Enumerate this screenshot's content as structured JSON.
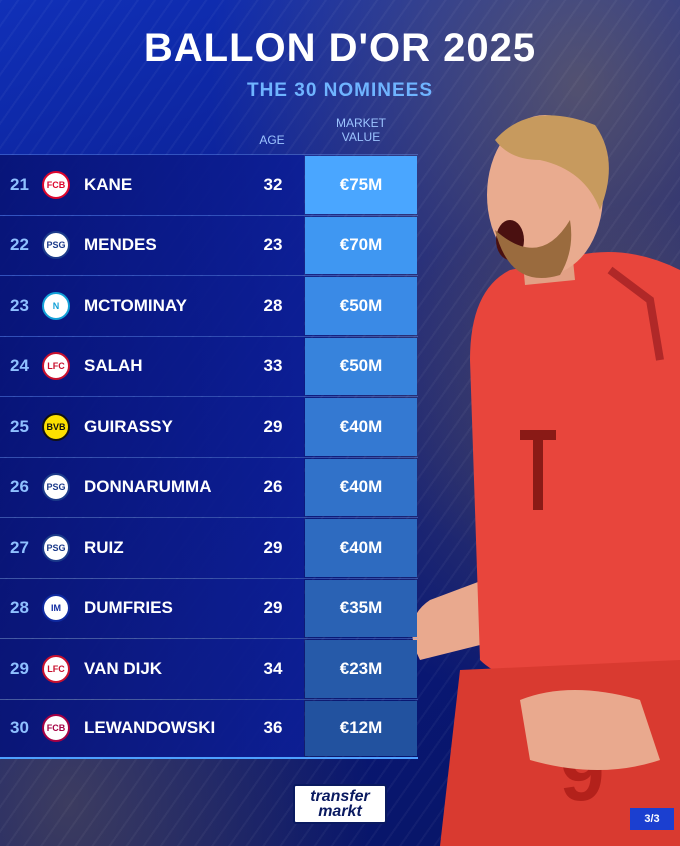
{
  "title": "BALLON D'OR 2025",
  "subtitle": "THE 30 NOMINEES",
  "columns": {
    "age": "AGE",
    "market_value_l1": "MARKET",
    "market_value_l2": "VALUE"
  },
  "rows": [
    {
      "rank": "21",
      "name": "KANE",
      "age": "32",
      "value": "€75M",
      "club_icon": "bayern-crest-icon",
      "club_color": "#dc052d",
      "crest_text": "FCB"
    },
    {
      "rank": "22",
      "name": "MENDES",
      "age": "23",
      "value": "€70M",
      "club_icon": "psg-crest-icon",
      "club_color": "#1b3a8a",
      "crest_text": "PSG"
    },
    {
      "rank": "23",
      "name": "MCTOMINAY",
      "age": "28",
      "value": "€50M",
      "club_icon": "napoli-crest-icon",
      "club_color": "#12a0d7",
      "crest_text": "N"
    },
    {
      "rank": "24",
      "name": "SALAH",
      "age": "33",
      "value": "€50M",
      "club_icon": "liverpool-crest-icon",
      "club_color": "#c8102e",
      "crest_text": "LFC"
    },
    {
      "rank": "25",
      "name": "GUIRASSY",
      "age": "29",
      "value": "€40M",
      "club_icon": "dortmund-crest-icon",
      "club_color": "#fde100",
      "crest_text": "BVB"
    },
    {
      "rank": "26",
      "name": "DONNARUMMA",
      "age": "26",
      "value": "€40M",
      "club_icon": "psg-crest-icon",
      "club_color": "#1b3a8a",
      "crest_text": "PSG"
    },
    {
      "rank": "27",
      "name": "RUIZ",
      "age": "29",
      "value": "€40M",
      "club_icon": "psg-crest-icon",
      "club_color": "#1b3a8a",
      "crest_text": "PSG"
    },
    {
      "rank": "28",
      "name": "DUMFRIES",
      "age": "29",
      "value": "€35M",
      "club_icon": "inter-crest-icon",
      "club_color": "#0f2aa0",
      "crest_text": "IM"
    },
    {
      "rank": "29",
      "name": "VAN DIJK",
      "age": "34",
      "value": "€23M",
      "club_icon": "liverpool-crest-icon",
      "club_color": "#c8102e",
      "crest_text": "LFC"
    },
    {
      "rank": "30",
      "name": "LEWANDOWSKI",
      "age": "36",
      "value": "€12M",
      "club_icon": "barcelona-crest-icon",
      "club_color": "#a50044",
      "crest_text": "FCB"
    }
  ],
  "value_colors": [
    "#4aa6ff",
    "#3f97f2",
    "#3a8ae6",
    "#3783dc",
    "#3479d2",
    "#3172c9",
    "#2e6bc0",
    "#2a62b4",
    "#265aa9",
    "#22529f"
  ],
  "logo": {
    "line1": "transfer",
    "line2": "markt"
  },
  "page": "3/3"
}
